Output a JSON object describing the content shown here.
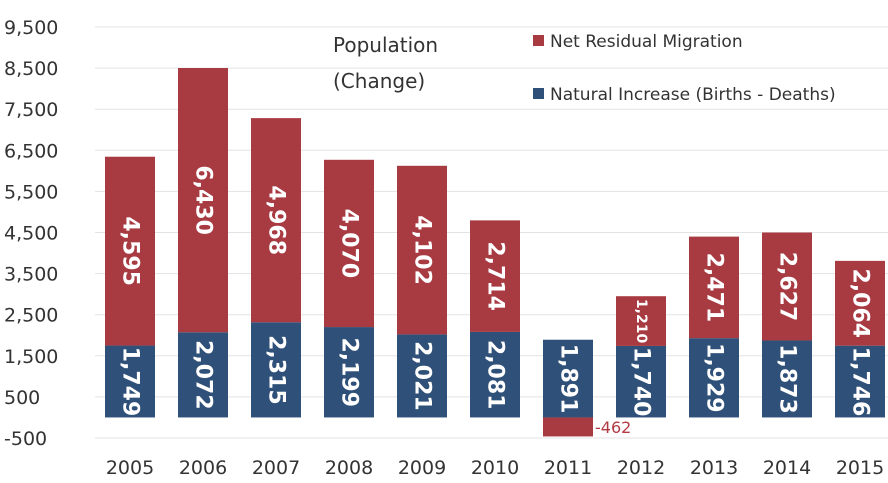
{
  "chart_data": {
    "type": "bar",
    "stacked": true,
    "title_lines": [
      "Population",
      "(Change)"
    ],
    "categories": [
      "2005",
      "2006",
      "2007",
      "2008",
      "2009",
      "2010",
      "2011",
      "2012",
      "2013",
      "2014",
      "2015"
    ],
    "series": [
      {
        "name": "Natural Increase (Births - Deaths)",
        "color": "#2f5078",
        "values": [
          1749,
          2072,
          2315,
          2199,
          2021,
          2081,
          1891,
          1740,
          1929,
          1873,
          1746
        ],
        "labels": [
          "1,749",
          "2,072",
          "2,315",
          "2,199",
          "2,021",
          "2,081",
          "1,891",
          "1,740",
          "1,929",
          "1,873",
          "1,746"
        ]
      },
      {
        "name": "Net Residual Migration",
        "color": "#a83a42",
        "values": [
          4595,
          6430,
          4968,
          4070,
          4102,
          2714,
          -462,
          1210,
          2471,
          2627,
          2064
        ],
        "labels": [
          "4,595",
          "6,430",
          "4,968",
          "4,070",
          "4,102",
          "2,714",
          "-462",
          "1,210",
          "2,471",
          "2,627",
          "2,064"
        ]
      }
    ],
    "y_ticks": [
      -500,
      500,
      1500,
      2500,
      3500,
      4500,
      5500,
      6500,
      7500,
      8500,
      9500
    ],
    "y_tick_labels": [
      "-500",
      "500",
      "1,500",
      "2,500",
      "3,500",
      "4,500",
      "5,500",
      "6,500",
      "7,500",
      "8,500",
      "9,500"
    ],
    "ylim": [
      -800,
      9800
    ],
    "grid": true,
    "legend_position": "top-right"
  }
}
